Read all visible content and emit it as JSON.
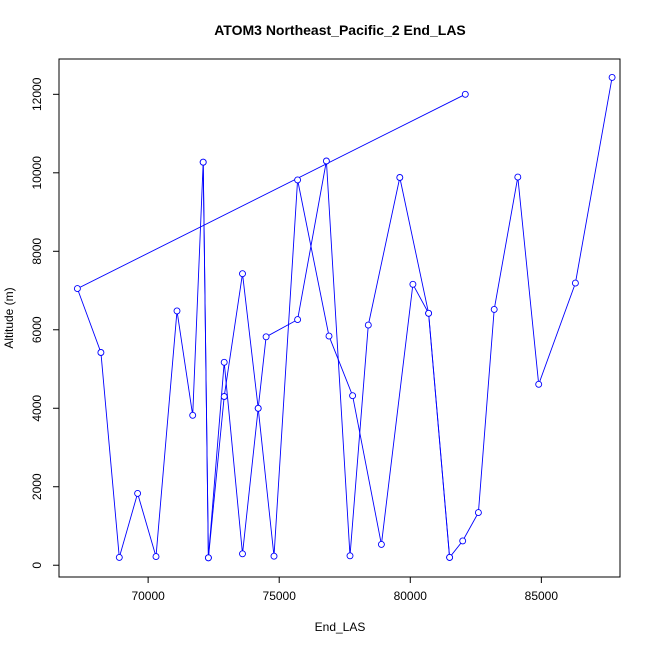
{
  "chart_data": {
    "type": "line",
    "title": "ATOM3 Northeast_Pacific_2 End_LAS",
    "xlabel": "End_LAS",
    "ylabel": "Altitude (m)",
    "xlim": [
      66600,
      88000
    ],
    "ylim": [
      -300,
      12900
    ],
    "xticks": [
      70000,
      75000,
      80000,
      85000
    ],
    "yticks": [
      0,
      2000,
      4000,
      6000,
      8000,
      10000,
      12000
    ],
    "grid": false,
    "series_color": "#0000ff",
    "marker": "open-circle",
    "x": [
      82100,
      67300,
      68200,
      68900,
      69600,
      70300,
      71100,
      71700,
      72100,
      72300,
      72900,
      73600,
      74200,
      74800,
      75700,
      76900,
      77800,
      78900,
      80100,
      80700,
      81500,
      82000,
      82600,
      83200,
      84100,
      84900,
      86300,
      87700
    ],
    "y": [
      12000,
      7050,
      5420,
      200,
      1830,
      220,
      6480,
      3820,
      10270,
      190,
      4300,
      7430,
      4000,
      230,
      9820,
      5840,
      4320,
      530,
      7160,
      6420,
      200,
      620,
      1340,
      6520,
      9890,
      4610,
      7190,
      12430
    ],
    "x2": [
      72100,
      72300,
      72900,
      73600,
      74200,
      74500,
      75700,
      76800,
      77700,
      78400,
      79600,
      80700,
      81500
    ],
    "y2": [
      10270,
      190,
      5170,
      290,
      4000,
      5820,
      6260,
      10300,
      240,
      6120,
      9880,
      6420,
      200
    ]
  }
}
